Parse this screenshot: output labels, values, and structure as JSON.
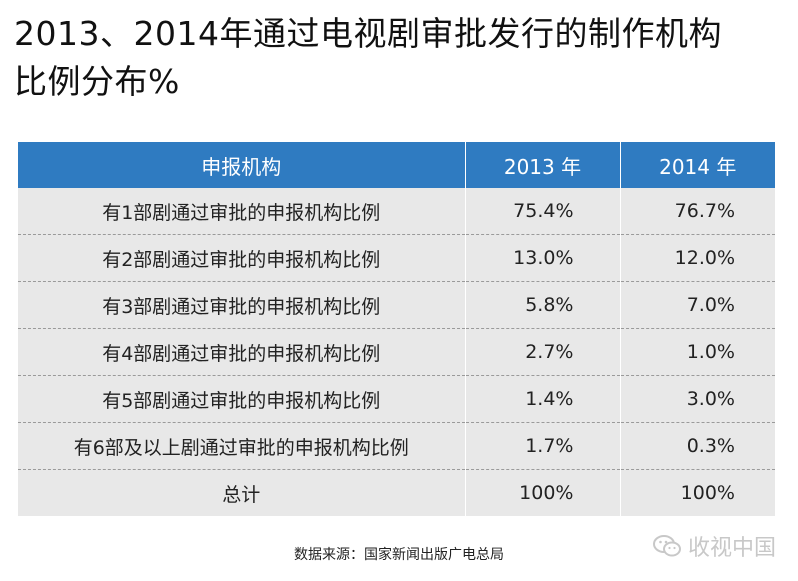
{
  "title": {
    "line1": "2013、2014年通过电视剧审批发行的制作机构",
    "line2": "比例分布%"
  },
  "table": {
    "headers": [
      "申报机构",
      "2013 年",
      "2014 年"
    ],
    "rows": [
      {
        "label": "有1部剧通过审批的申报机构比例",
        "y2013": "75.4%",
        "y2014": "76.7%"
      },
      {
        "label": "有2部剧通过审批的申报机构比例",
        "y2013": "13.0%",
        "y2014": "12.0%"
      },
      {
        "label": "有3部剧通过审批的申报机构比例",
        "y2013": "5.8%",
        "y2014": "7.0%"
      },
      {
        "label": "有4部剧通过审批的申报机构比例",
        "y2013": "2.7%",
        "y2014": "1.0%"
      },
      {
        "label": "有5部剧通过审批的申报机构比例",
        "y2013": "1.4%",
        "y2014": "3.0%"
      },
      {
        "label": "有6部及以上剧通过审批的申报机构比例",
        "y2013": "1.7%",
        "y2014": "0.3%"
      }
    ],
    "total": {
      "label": "总计",
      "y2013": "100%",
      "y2014": "100%"
    }
  },
  "source": "数据来源：国家新闻出版广电总局",
  "watermark": {
    "text": "收视中国",
    "icon": "wechat-icon"
  },
  "colors": {
    "header_bg": "#2f7bc1",
    "row_bg": "#e8e8e8"
  },
  "chart_data": {
    "type": "table",
    "title": "2013、2014年通过电视剧审批发行的制作机构比例分布%",
    "columns": [
      "申报机构",
      "2013 年",
      "2014 年"
    ],
    "rows": [
      [
        "有1部剧通过审批的申报机构比例",
        75.4,
        76.7
      ],
      [
        "有2部剧通过审批的申报机构比例",
        13.0,
        12.0
      ],
      [
        "有3部剧通过审批的申报机构比例",
        5.8,
        7.0
      ],
      [
        "有4部剧通过审批的申报机构比例",
        2.7,
        1.0
      ],
      [
        "有5部剧通过审批的申报机构比例",
        1.4,
        3.0
      ],
      [
        "有6部及以上剧通过审批的申报机构比例",
        1.7,
        0.3
      ],
      [
        "总计",
        100,
        100
      ]
    ]
  }
}
